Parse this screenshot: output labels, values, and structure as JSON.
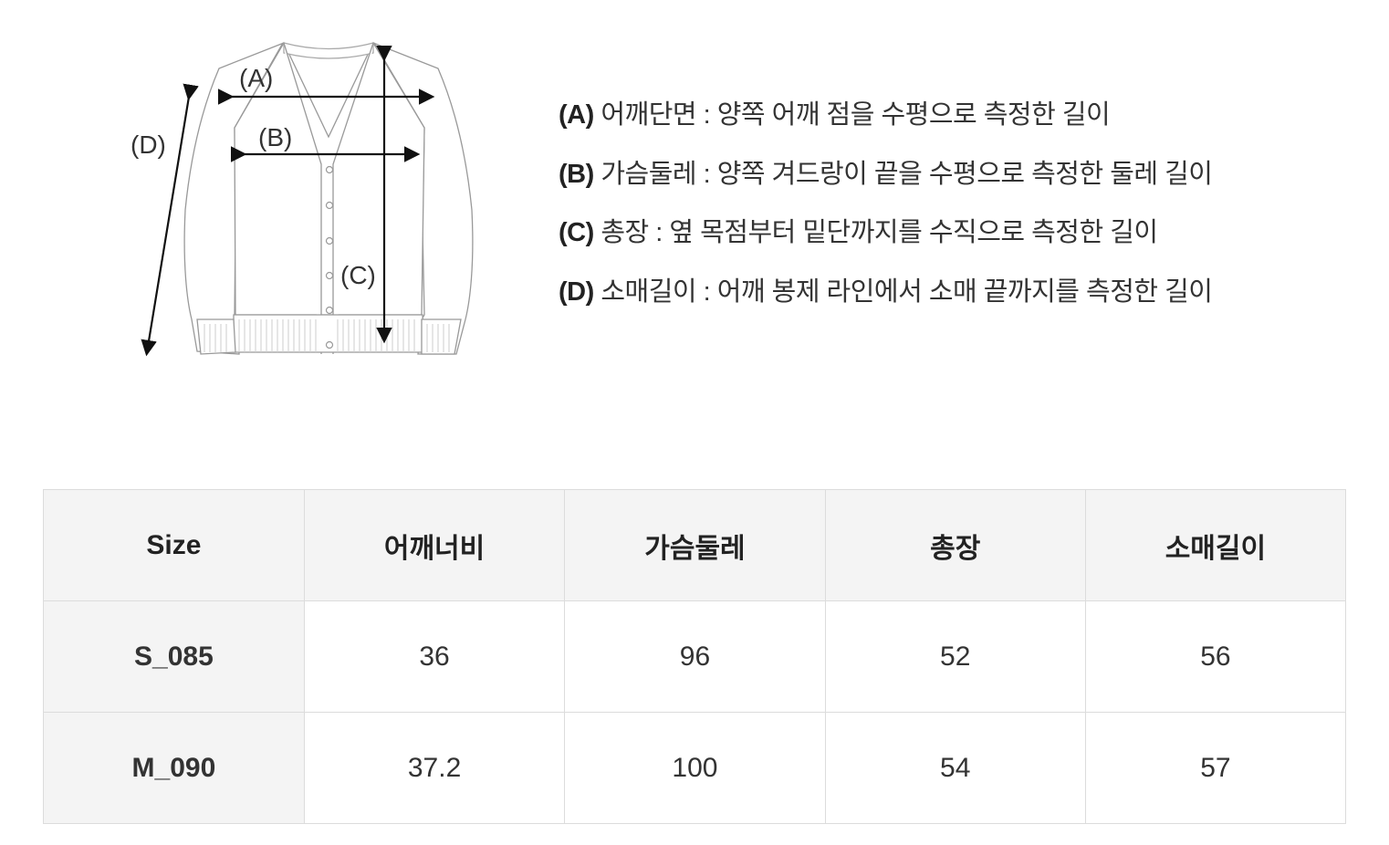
{
  "diagram": {
    "labels": {
      "a": "(A)",
      "b": "(B)",
      "c": "(C)",
      "d": "(D)"
    }
  },
  "descriptions": [
    {
      "key": "(A)",
      "text": "어깨단면 : 양쪽 어깨 점을 수평으로 측정한 길이"
    },
    {
      "key": "(B)",
      "text": "가슴둘레 : 양쪽 겨드랑이 끝을 수평으로 측정한 둘레 길이"
    },
    {
      "key": "(C)",
      "text": "총장 : 옆 목점부터 밑단까지를 수직으로 측정한 길이"
    },
    {
      "key": "(D)",
      "text": "소매길이 : 어깨 봉제 라인에서 소매 끝까지를 측정한 길이"
    }
  ],
  "table": {
    "headers": [
      "Size",
      "어깨너비",
      "가슴둘레",
      "총장",
      "소매길이"
    ],
    "rows": [
      [
        "S_085",
        "36",
        "96",
        "52",
        "56"
      ],
      [
        "M_090",
        "37.2",
        "100",
        "54",
        "57"
      ]
    ]
  }
}
